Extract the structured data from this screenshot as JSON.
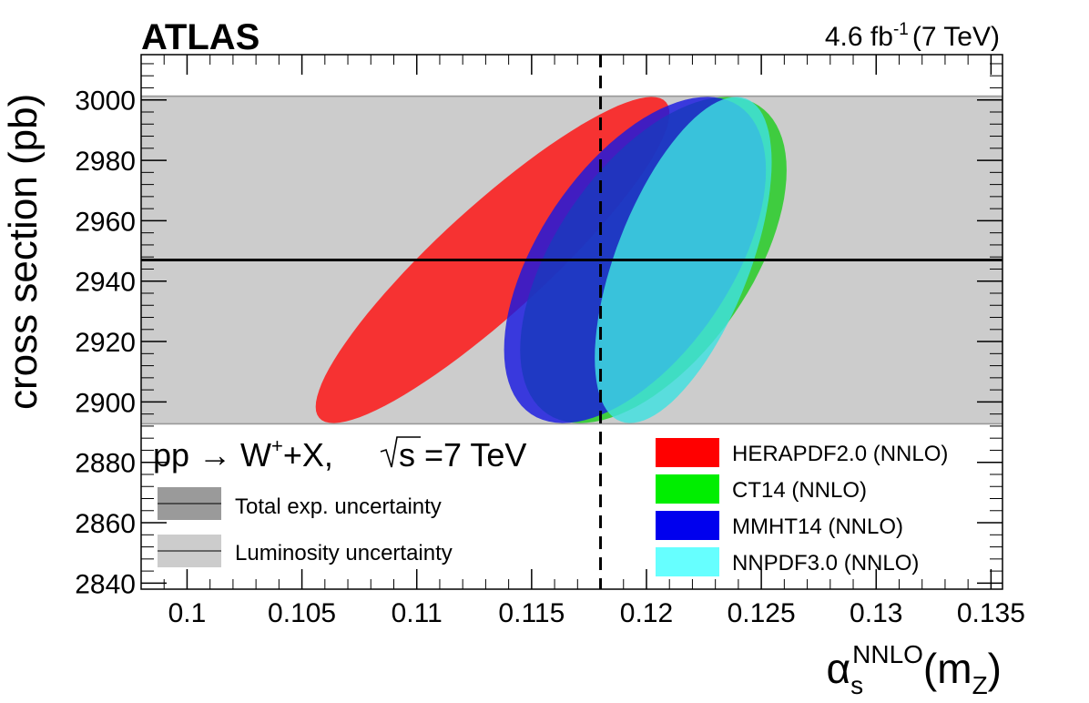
{
  "chart_data": {
    "type": "ellipse-contour",
    "experiment": "ATLAS",
    "luminosity_label": "4.6 fb",
    "luminosity_sup": "-1",
    "energy_label": "(7 TeV)",
    "process": {
      "prefix": "pp",
      "arrow": "→",
      "boson": "W",
      "boson_sup": "+",
      "suffix": "+X,",
      "sqrt_s_label": "s =7 TeV"
    },
    "xlabel": {
      "symbol": "α",
      "sub": "s",
      "sup": "NNLO",
      "arg": "(m",
      "arg_sub": "Z",
      "close": ")"
    },
    "ylabel": "cross section (pb)",
    "xlim": [
      0.098,
      0.1355
    ],
    "ylim": [
      2838,
      3015
    ],
    "xticks": [
      0.1,
      0.105,
      0.11,
      0.115,
      0.12,
      0.125,
      0.13,
      0.135
    ],
    "xtick_labels": [
      "0.1",
      "0.105",
      "0.11",
      "0.115",
      "0.12",
      "0.125",
      "0.13",
      "0.135"
    ],
    "yticks": [
      2840,
      2860,
      2880,
      2900,
      2920,
      2940,
      2960,
      2980,
      3000
    ],
    "ytick_labels": [
      "2840",
      "2860",
      "2880",
      "2900",
      "2920",
      "2940",
      "2960",
      "2980",
      "3000"
    ],
    "measured_cross_section": 2947,
    "luminosity_band": [
      2893,
      3001
    ],
    "total_exp_band": [
      2892.5,
      3001.5
    ],
    "reference_alpha_s": 0.118,
    "bands_legend": [
      {
        "label": "Total exp. uncertainty",
        "color": "#9a9a9a"
      },
      {
        "label": "Luminosity uncertainty",
        "color": "#cccccc"
      }
    ],
    "series": [
      {
        "name": "HERAPDF2.0 (NNLO)",
        "color": "#ff1010",
        "legend_color": "#ff0000",
        "center": [
          0.1133,
          2947
        ],
        "alpha_range": [
          0.1056,
          0.121
        ],
        "xs_range": [
          2893,
          3001
        ],
        "correlation": 0.9
      },
      {
        "name": "CT14 (NNLO)",
        "color": "#20cc20",
        "legend_color": "#00ee00",
        "center": [
          0.1203,
          2947
        ],
        "alpha_range": [
          0.1146,
          0.1262
        ],
        "xs_range": [
          2893,
          3001
        ],
        "correlation": 0.55
      },
      {
        "name": "MMHT14 (NNLO)",
        "color": "#1818e0",
        "legend_color": "#0000ee",
        "center": [
          0.1195,
          2947
        ],
        "alpha_range": [
          0.1138,
          0.1252
        ],
        "xs_range": [
          2893,
          3001
        ],
        "correlation": 0.55
      },
      {
        "name": "NNPDF3.0 (NNLO)",
        "color": "#40e0e0",
        "legend_color": "#66ffff",
        "center": [
          0.1216,
          2947
        ],
        "alpha_range": [
          0.1178,
          0.1255
        ],
        "xs_range": [
          2893,
          3001
        ],
        "correlation": 0.6
      }
    ]
  }
}
